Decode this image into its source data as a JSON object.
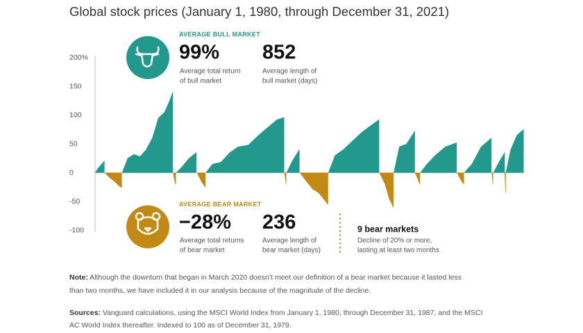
{
  "chart_data": {
    "type": "area",
    "title": "Global stock prices (January 1, 1980, through December 31, 2021)",
    "xlim": [
      1980,
      2022
    ],
    "ylim": [
      -100,
      200
    ],
    "yticks": [
      {
        "value": 200,
        "label": "200%"
      },
      150,
      100,
      50,
      0,
      -50,
      -100
    ],
    "series": [
      {
        "color": "#23998e",
        "x": [
          1980.0,
          1980.3,
          1980.6,
          1980.9
        ],
        "values": [
          0,
          8,
          14,
          20
        ]
      },
      {
        "color": "#c28a15",
        "x": [
          1980.95,
          1981.4,
          1981.9,
          1982.3,
          1982.6
        ],
        "values": [
          0,
          -8,
          -15,
          -22,
          -26
        ]
      },
      {
        "color": "#23998e",
        "x": [
          1982.65,
          1983.2,
          1983.8,
          1984.4,
          1985.0,
          1985.6,
          1986.2,
          1986.8,
          1987.3,
          1987.6
        ],
        "values": [
          0,
          25,
          32,
          28,
          40,
          60,
          95,
          105,
          125,
          140
        ]
      },
      {
        "color": "#c28a15",
        "x": [
          1987.65,
          1987.8,
          1987.9
        ],
        "values": [
          0,
          -15,
          -20
        ]
      },
      {
        "color": "#23998e",
        "x": [
          1987.95,
          1988.5,
          1989.2,
          1989.9
        ],
        "values": [
          0,
          10,
          25,
          35
        ]
      },
      {
        "color": "#c28a15",
        "x": [
          1990.0,
          1990.4,
          1990.8
        ],
        "values": [
          0,
          -15,
          -25
        ]
      },
      {
        "color": "#23998e",
        "x": [
          1990.85,
          1991.5,
          1992.3,
          1993.2,
          1994.0,
          1995.0,
          1996.0,
          1997.0,
          1997.8,
          1998.5
        ],
        "values": [
          0,
          15,
          18,
          35,
          45,
          48,
          65,
          80,
          92,
          96
        ]
      },
      {
        "color": "#c28a15",
        "x": [
          1998.55,
          1998.7
        ],
        "values": [
          0,
          -20
        ]
      },
      {
        "color": "#23998e",
        "x": [
          1998.75,
          1999.3,
          2000.0
        ],
        "values": [
          0,
          20,
          40
        ]
      },
      {
        "color": "#c28a15",
        "x": [
          2000.05,
          2000.7,
          2001.3,
          2001.9,
          2002.5,
          2002.8
        ],
        "values": [
          0,
          -15,
          -28,
          -35,
          -48,
          -55
        ]
      },
      {
        "color": "#23998e",
        "x": [
          2002.85,
          2003.5,
          2004.3,
          2005.2,
          2006.1,
          2007.0,
          2007.8
        ],
        "values": [
          0,
          30,
          40,
          55,
          70,
          82,
          92
        ]
      },
      {
        "color": "#c28a15",
        "x": [
          2007.85,
          2008.4,
          2008.8,
          2009.2
        ],
        "values": [
          0,
          -20,
          -45,
          -60
        ]
      },
      {
        "color": "#23998e",
        "x": [
          2009.25,
          2009.8,
          2010.5,
          2011.3
        ],
        "values": [
          0,
          45,
          50,
          72
        ]
      },
      {
        "color": "#c28a15",
        "x": [
          2011.35,
          2011.8
        ],
        "values": [
          0,
          -20
        ]
      },
      {
        "color": "#23998e",
        "x": [
          2011.85,
          2012.5,
          2013.3,
          2014.3,
          2015.4
        ],
        "values": [
          0,
          15,
          30,
          45,
          52
        ]
      },
      {
        "color": "#c28a15",
        "x": [
          2015.45,
          2015.8,
          2016.1
        ],
        "values": [
          0,
          -12,
          -20
        ]
      },
      {
        "color": "#23998e",
        "x": [
          2016.15,
          2016.9,
          2017.8,
          2018.8
        ],
        "values": [
          0,
          15,
          45,
          60
        ]
      },
      {
        "color": "#c28a15",
        "x": [
          2018.85,
          2018.95
        ],
        "values": [
          0,
          -20
        ]
      },
      {
        "color": "#23998e",
        "x": [
          2019.0,
          2019.6,
          2020.1
        ],
        "values": [
          0,
          20,
          35
        ]
      },
      {
        "color": "#c28a15",
        "x": [
          2020.12,
          2020.2
        ],
        "values": [
          0,
          -35
        ]
      },
      {
        "color": "#23998e",
        "x": [
          2020.22,
          2020.7,
          2021.3,
          2021.95
        ],
        "values": [
          0,
          40,
          65,
          75
        ]
      }
    ],
    "annotations": {
      "bull": {
        "heading": "AVERAGE BULL MARKET",
        "stats": [
          {
            "value": "99%",
            "label": [
              "Average total return",
              "of bull market"
            ]
          },
          {
            "value": "852",
            "label": [
              "Average length of",
              "bull market (days)"
            ]
          }
        ]
      },
      "bear": {
        "heading": "AVERAGE BEAR MARKET",
        "stats": [
          {
            "value": "−28%",
            "label": [
              "Average total returns",
              "of bear market"
            ]
          },
          {
            "value": "236",
            "label": [
              "Average length of",
              "bear market (days)"
            ]
          }
        ]
      },
      "count": {
        "title": "9 bear markets",
        "lines": [
          "Decline of 20% or more,",
          "lasting at least two months"
        ]
      }
    },
    "note": {
      "label": "Note:",
      "lines": [
        " Although the downturn that began in March 2020 doesn’t meet our definition of a bear market because it lasted less",
        "than two months, we have included it in our analysis because of the magnitude of the decline."
      ]
    },
    "sources": {
      "label": "Sources:",
      "lines": [
        " Vanguard calculations, using the MSCI World Index from January 1, 1980, through December 31, 1987, and the MSCI",
        "AC World Index thereafter. Indexed to 100 as of December 31, 1979."
      ]
    }
  }
}
